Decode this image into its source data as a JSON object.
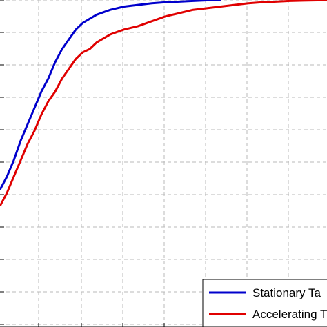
{
  "chart_data": {
    "type": "line",
    "title": "",
    "xlabel": "",
    "ylabel": "",
    "xlim": [
      0,
      474
    ],
    "ylim": [
      0,
      1
    ],
    "grid": true,
    "legend_position": "bottom-right",
    "series": [
      {
        "name": "Stationary Ta",
        "color": "#0000cc",
        "x": [
          0,
          10,
          20,
          30,
          40,
          50,
          60,
          70,
          80,
          90,
          100,
          110,
          120,
          140,
          160,
          180,
          200,
          220,
          240,
          260,
          280,
          300,
          320
        ],
        "y": [
          0.42,
          0.46,
          0.51,
          0.57,
          0.62,
          0.67,
          0.72,
          0.76,
          0.81,
          0.85,
          0.88,
          0.91,
          0.93,
          0.955,
          0.97,
          0.98,
          0.985,
          0.99,
          0.993,
          0.995,
          0.997,
          0.999,
          1.0
        ]
      },
      {
        "name": "Accelerating T",
        "color": "#e00000",
        "x": [
          0,
          10,
          20,
          30,
          40,
          50,
          60,
          70,
          80,
          90,
          100,
          110,
          120,
          130,
          140,
          160,
          180,
          200,
          220,
          240,
          260,
          280,
          300,
          320,
          340,
          360,
          380,
          400,
          420,
          440,
          460,
          474
        ],
        "y": [
          0.37,
          0.41,
          0.46,
          0.51,
          0.56,
          0.6,
          0.65,
          0.69,
          0.72,
          0.76,
          0.79,
          0.82,
          0.84,
          0.85,
          0.87,
          0.895,
          0.91,
          0.92,
          0.935,
          0.95,
          0.96,
          0.97,
          0.975,
          0.98,
          0.985,
          0.99,
          0.993,
          0.995,
          0.997,
          0.998,
          0.999,
          0.999
        ]
      }
    ]
  }
}
